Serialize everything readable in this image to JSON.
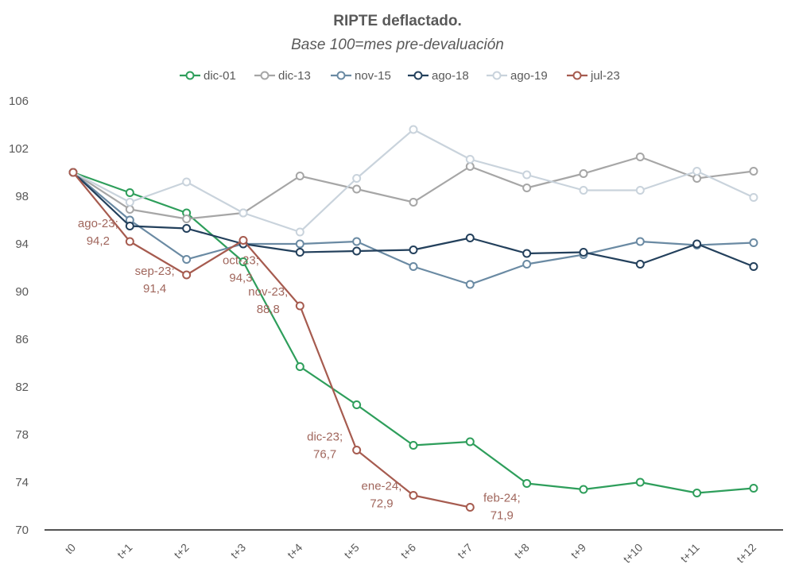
{
  "chart_data": {
    "type": "line",
    "title": "RIPTE deflactado.",
    "subtitle": "Base 100=mes pre-devaluación",
    "xlabel": "",
    "ylabel": "",
    "x": [
      "t0",
      "t+1",
      "t+2",
      "t+3",
      "t+4",
      "t+5",
      "t+6",
      "t+7",
      "t+8",
      "t+9",
      "t+10",
      "t+11",
      "t+12"
    ],
    "ylim": [
      70,
      106
    ],
    "yticks": [
      70,
      74,
      78,
      82,
      86,
      90,
      94,
      98,
      102,
      106
    ],
    "grid": false,
    "legend_position": "top-center",
    "series": [
      {
        "name": "dic-01",
        "color": "#2e9e5b",
        "values": [
          100,
          98.3,
          96.6,
          92.5,
          83.7,
          80.5,
          77.1,
          77.4,
          73.9,
          73.4,
          74.0,
          73.1,
          73.5
        ]
      },
      {
        "name": "dic-13",
        "color": "#a6a6a6",
        "values": [
          100,
          96.9,
          96.1,
          96.6,
          99.7,
          98.6,
          97.5,
          100.5,
          98.7,
          99.9,
          101.3,
          99.5,
          100.1
        ]
      },
      {
        "name": "nov-15",
        "color": "#6a8aa3",
        "values": [
          100,
          96.0,
          92.7,
          94.0,
          94.0,
          94.2,
          92.1,
          90.6,
          92.3,
          93.1,
          94.2,
          93.9,
          94.1
        ]
      },
      {
        "name": "ago-18",
        "color": "#23405c",
        "values": [
          100,
          95.5,
          95.3,
          94.0,
          93.3,
          93.4,
          93.5,
          94.5,
          93.2,
          93.3,
          92.3,
          94.0,
          92.1
        ]
      },
      {
        "name": "ago-19",
        "color": "#c9d3dc",
        "values": [
          100,
          97.5,
          99.2,
          96.6,
          95.0,
          99.5,
          103.6,
          101.1,
          99.8,
          98.5,
          98.5,
          100.1,
          97.9
        ]
      },
      {
        "name": "jul-23",
        "color": "#a65b4f",
        "values": [
          100,
          94.2,
          91.4,
          94.3,
          88.8,
          76.7,
          72.9,
          71.9,
          null,
          null,
          null,
          null,
          null
        ]
      }
    ],
    "annotations": [
      {
        "series": "jul-23",
        "x": "t+1",
        "line1": "ago-23;",
        "line2": "94,2"
      },
      {
        "series": "jul-23",
        "x": "t+2",
        "line1": "sep-23;",
        "line2": "91,4"
      },
      {
        "series": "jul-23",
        "x": "t+3",
        "line1": "oct-23;",
        "line2": "94,3"
      },
      {
        "series": "jul-23",
        "x": "t+4",
        "line1": "nov-23;",
        "line2": "88,8"
      },
      {
        "series": "jul-23",
        "x": "t+5",
        "line1": "dic-23;",
        "line2": "76,7"
      },
      {
        "series": "jul-23",
        "x": "t+6",
        "line1": "ene-24;",
        "line2": "72,9"
      },
      {
        "series": "jul-23",
        "x": "t+7",
        "line1": "feb-24;",
        "line2": "71,9"
      }
    ]
  }
}
